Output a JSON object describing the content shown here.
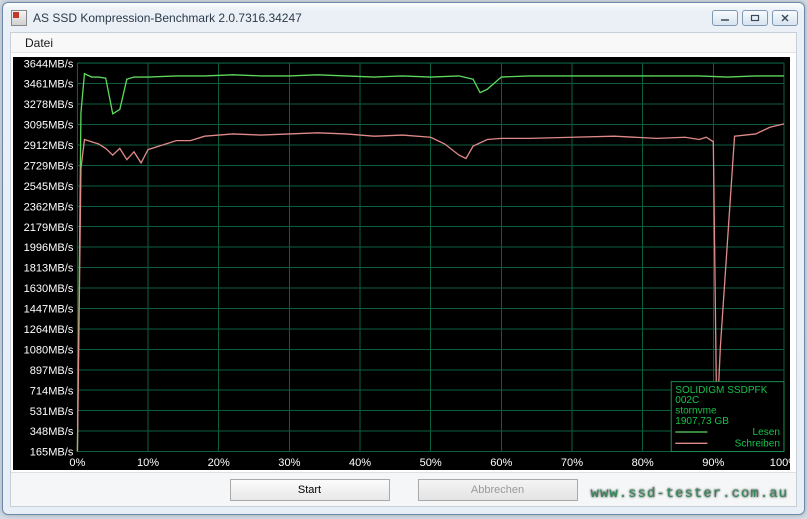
{
  "window": {
    "title": "AS SSD Kompression-Benchmark 2.0.7316.34247"
  },
  "menu": {
    "file": "Datei"
  },
  "buttons": {
    "start": "Start",
    "abort": "Abbrechen"
  },
  "watermark": "www.ssd-tester.com.au",
  "legend": {
    "device": "SOLIDIGM SSDPFK",
    "firmware": "002C",
    "driver": "stornvme",
    "capacity": "1907,73 GB",
    "read": "Lesen",
    "write": "Schreiben"
  },
  "chart": {
    "background_color": "#000000",
    "grid_color": "#0b5f3f",
    "label_color": "#ffffff",
    "read_color": "#5cd85c",
    "write_color": "#e08a8a",
    "legend_text_color": "#17c14a",
    "label_fontsize": 11,
    "legend_fontsize": 10,
    "xlim": [
      0,
      100
    ],
    "xtick_step": 10,
    "xtick_labels": [
      "0%",
      "10%",
      "20%",
      "30%",
      "40%",
      "50%",
      "60%",
      "70%",
      "80%",
      "90%",
      "100%"
    ],
    "ytick_values": [
      165,
      348,
      531,
      714,
      897,
      1080,
      1264,
      1447,
      1630,
      1813,
      1996,
      2179,
      2362,
      2545,
      2729,
      2912,
      3095,
      3278,
      3461,
      3644
    ],
    "ytick_labels": [
      "165MB/s",
      "348MB/s",
      "531MB/s",
      "714MB/s",
      "897MB/s",
      "1080MB/s",
      "1264MB/s",
      "1447MB/s",
      "1630MB/s",
      "1813MB/s",
      "1996MB/s",
      "2179MB/s",
      "2362MB/s",
      "2545MB/s",
      "2729MB/s",
      "2912MB/s",
      "3095MB/s",
      "3278MB/s",
      "3461MB/s",
      "3644MB/s"
    ],
    "series_read": {
      "x": [
        0,
        0.5,
        1,
        2,
        3,
        4,
        5,
        6,
        7,
        8,
        10,
        14,
        18,
        22,
        26,
        30,
        34,
        38,
        42,
        46,
        50,
        54,
        56,
        57,
        58,
        60,
        64,
        70,
        76,
        82,
        88,
        92,
        96,
        100
      ],
      "y": [
        165,
        3200,
        3550,
        3520,
        3520,
        3510,
        3190,
        3230,
        3500,
        3520,
        3520,
        3530,
        3530,
        3540,
        3530,
        3530,
        3540,
        3530,
        3520,
        3530,
        3520,
        3530,
        3500,
        3380,
        3410,
        3520,
        3530,
        3530,
        3530,
        3530,
        3530,
        3520,
        3530,
        3530
      ]
    },
    "series_write": {
      "x": [
        0,
        0.5,
        1,
        2,
        3,
        4,
        5,
        6,
        7,
        8,
        9,
        10,
        12,
        14,
        16,
        18,
        22,
        26,
        30,
        34,
        38,
        42,
        46,
        50,
        52,
        54,
        55,
        56,
        58,
        60,
        64,
        70,
        76,
        82,
        86,
        88,
        89,
        90,
        90.5,
        91,
        93,
        96,
        98,
        100
      ],
      "y": [
        165,
        2700,
        2960,
        2940,
        2920,
        2880,
        2820,
        2880,
        2780,
        2850,
        2750,
        2870,
        2910,
        2950,
        2950,
        2990,
        3010,
        3000,
        3010,
        3020,
        3010,
        2990,
        3000,
        2980,
        2920,
        2820,
        2790,
        2900,
        2960,
        2970,
        2970,
        2980,
        2990,
        2970,
        2980,
        2960,
        2980,
        2940,
        400,
        1100,
        2990,
        3010,
        3070,
        3100
      ]
    }
  }
}
